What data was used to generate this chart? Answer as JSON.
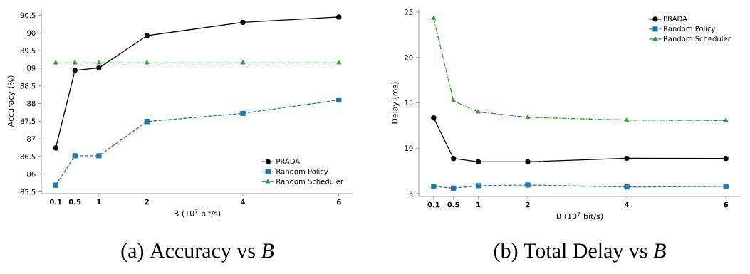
{
  "chart_data": [
    {
      "type": "line",
      "xlabel": "B (10$^{7}$ bit/s)",
      "ylabel": "Accuracy (%)",
      "x": [
        0.1,
        0.5,
        1,
        2,
        4,
        6
      ],
      "xlim": [
        -0.2,
        6.3
      ],
      "xticks": [
        0.1,
        0.5,
        1,
        2,
        4,
        6
      ],
      "ylim": [
        85.45,
        90.69
      ],
      "yticks": [
        85.5,
        86,
        86.5,
        87,
        87.5,
        88,
        88.5,
        89,
        89.5,
        90,
        90.5
      ],
      "legend": "bottom right",
      "grid": false,
      "annotations": [
        "(a) Accuracy vs *B*"
      ],
      "series": [
        {
          "name": "PRADA",
          "color": "#000000",
          "marker": "circle",
          "line_style": "solid",
          "values": [
            86.74,
            88.94,
            89.01,
            89.92,
            90.3,
            90.45
          ]
        },
        {
          "name": "Random Policy",
          "color": "#1f77b4",
          "marker": "square",
          "line_style": "dashed",
          "values": [
            85.69,
            86.52,
            86.52,
            87.49,
            87.72,
            88.1
          ]
        },
        {
          "name": "Random Scheduler",
          "color": "#2ca02c",
          "marker": "triangle",
          "line_style": "dashdot",
          "values": [
            89.15,
            89.15,
            89.15,
            89.15,
            89.15,
            89.15
          ]
        }
      ]
    },
    {
      "type": "line",
      "xlabel": "B (10$^{7}$ bit/s)",
      "ylabel": "Delay (ms)",
      "x": [
        0.1,
        0.5,
        1,
        2,
        4,
        6
      ],
      "xlim": [
        -0.2,
        6.3
      ],
      "xticks": [
        0.1,
        0.5,
        1,
        2,
        4,
        6
      ],
      "ylim": [
        4.69,
        25.31
      ],
      "yticks": [
        5,
        10,
        15,
        20,
        25
      ],
      "legend": "top right",
      "grid": false,
      "annotations": [
        "(b) Total Delay vs *B*"
      ],
      "series": [
        {
          "name": "PRADA",
          "color": "#000000",
          "marker": "circle",
          "line_style": "solid",
          "values": [
            13.35,
            8.87,
            8.5,
            8.5,
            8.9,
            8.87
          ]
        },
        {
          "name": "Random Policy",
          "color": "#1f77b4",
          "marker": "square",
          "line_style": "dashed",
          "values": [
            5.8,
            5.6,
            5.87,
            5.95,
            5.73,
            5.8
          ]
        },
        {
          "name": "Random Scheduler",
          "color": "#2ca02c",
          "marker": "triangle",
          "line_style": "dashdot",
          "values": [
            24.3,
            15.2,
            14.0,
            13.4,
            13.1,
            13.05
          ]
        }
      ]
    }
  ]
}
